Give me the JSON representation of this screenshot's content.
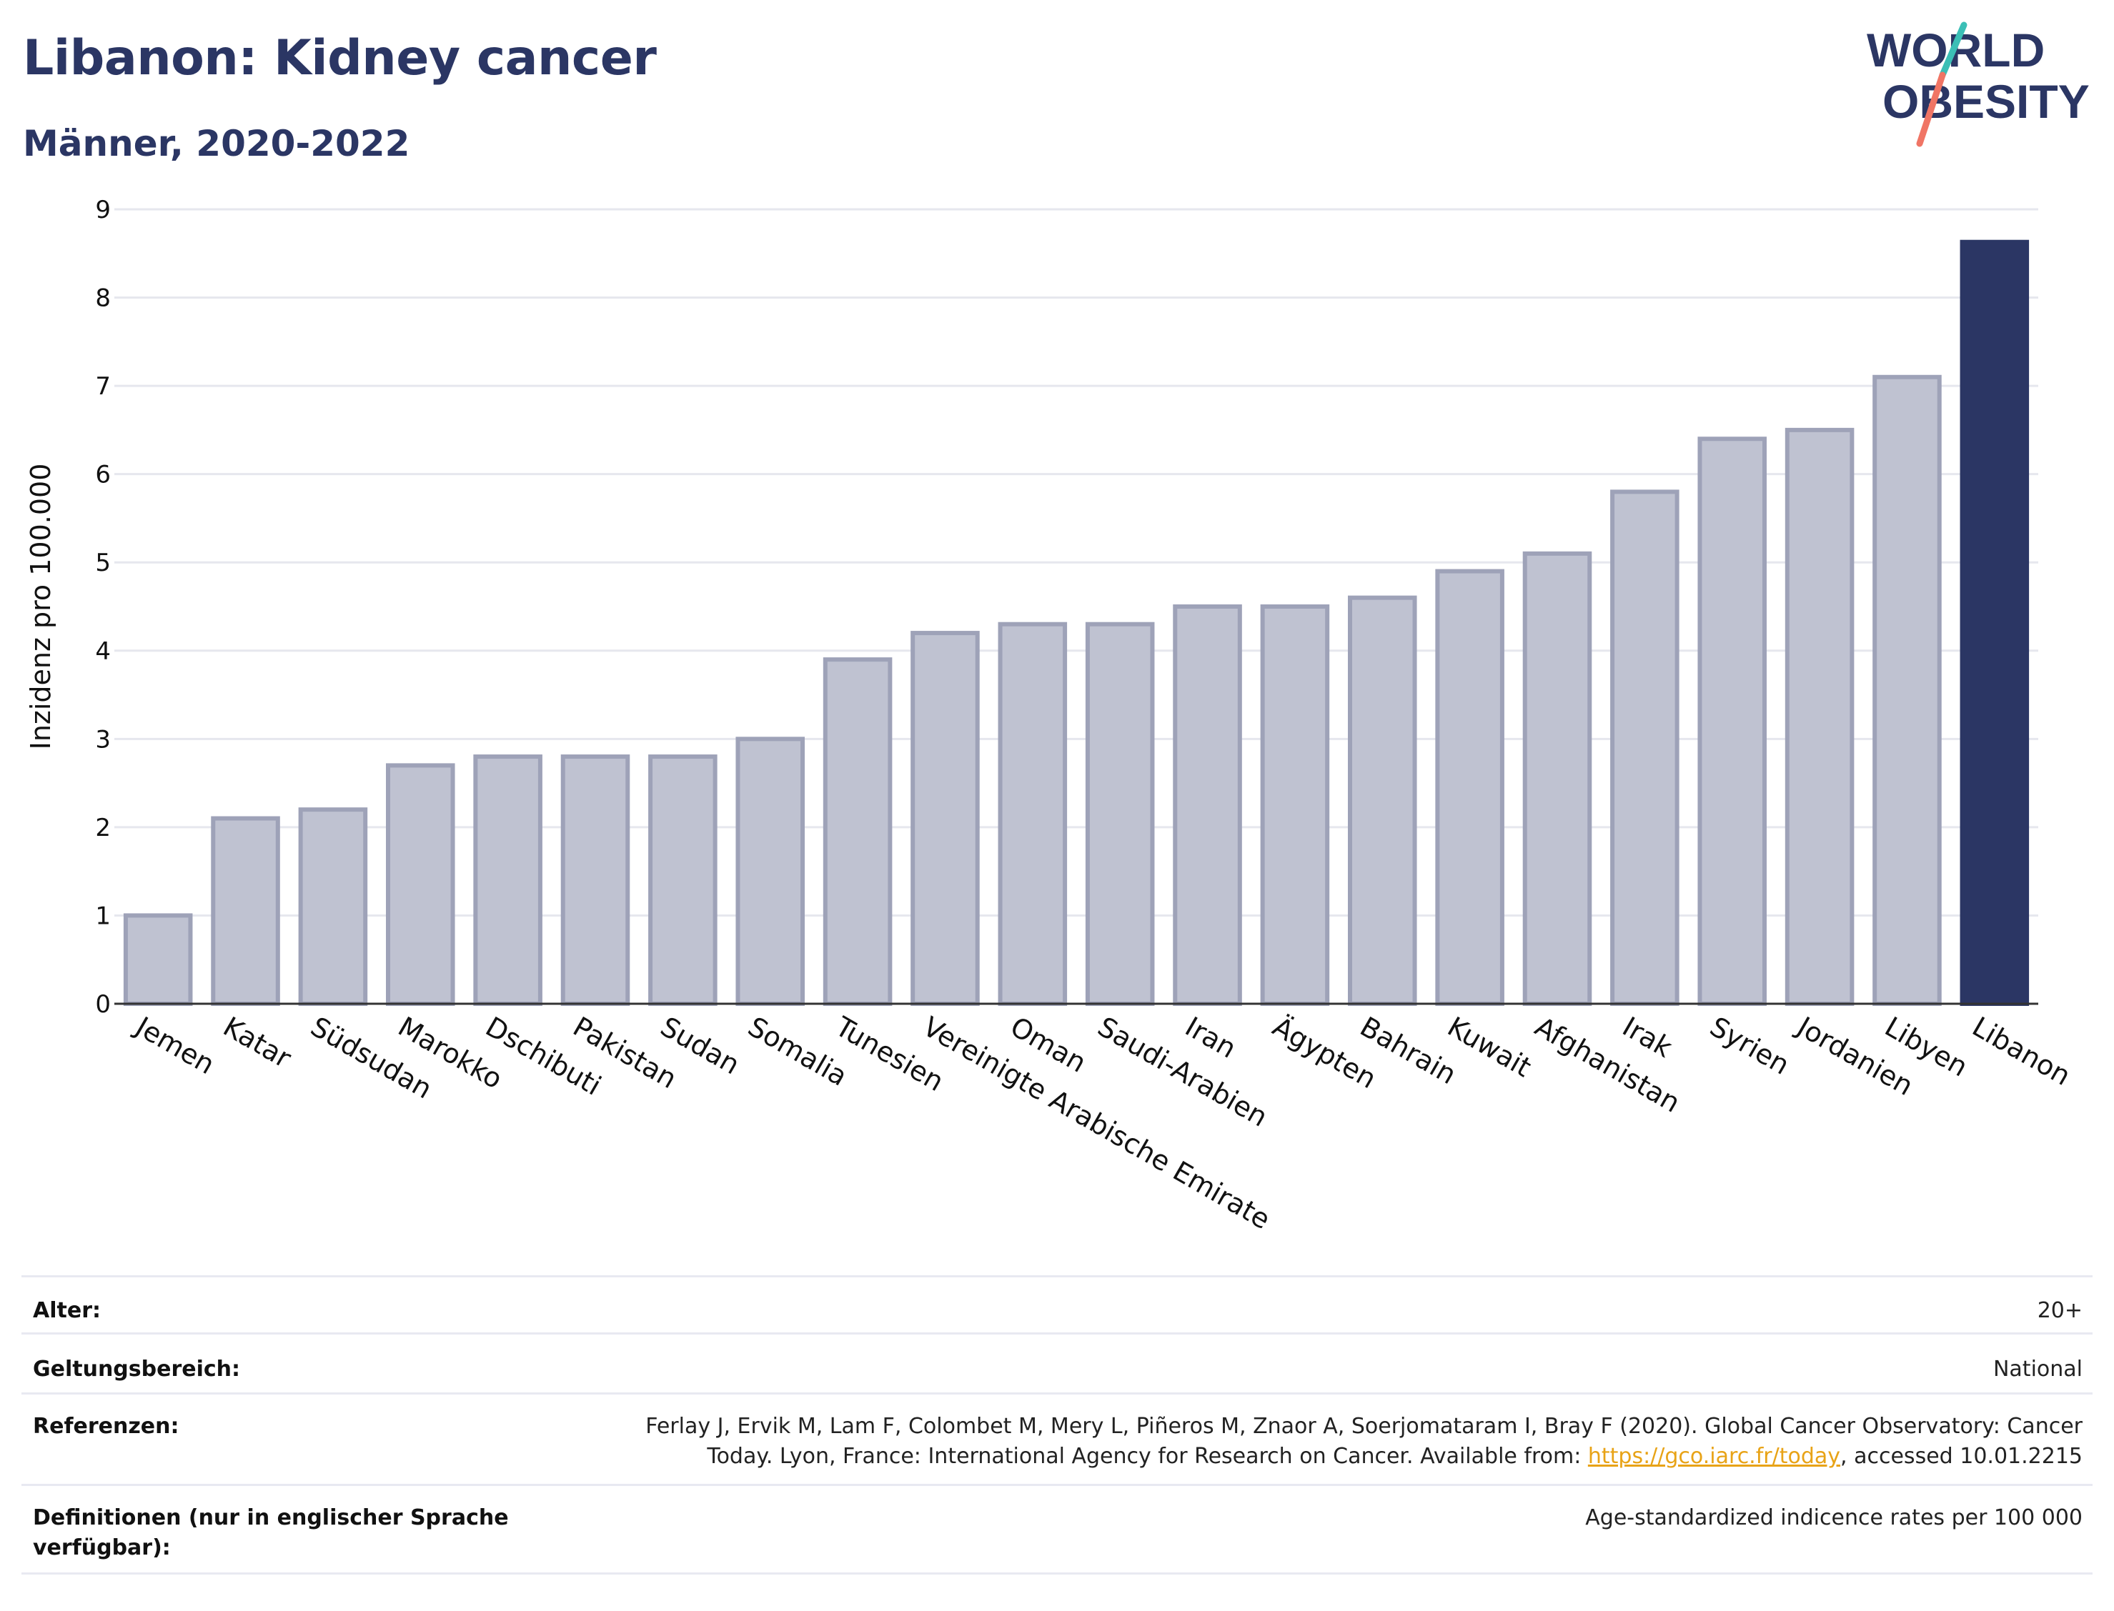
{
  "header": {
    "title": "Libanon: Kidney cancer",
    "subtitle": "Männer, 2020-2022",
    "logo": {
      "line1": "WORLD",
      "line2": "OBESITY"
    }
  },
  "colors": {
    "title": "#2b3664",
    "bar": "#bfc2d1",
    "bar_border": "#9ea2b8",
    "highlight": "#2b3664",
    "logo_teal": "#3bbfb6",
    "logo_coral": "#f07565",
    "link": "#e8a317"
  },
  "chart_data": {
    "type": "bar",
    "title": "Libanon: Kidney cancer",
    "subtitle": "Männer, 2020-2022",
    "xlabel": "",
    "ylabel": "Inzidenz pro 100.000",
    "ylim": [
      0,
      9
    ],
    "yticks": [
      0,
      1,
      2,
      3,
      4,
      5,
      6,
      7,
      8,
      9
    ],
    "grid": true,
    "categories": [
      "Jemen",
      "Katar",
      "Südsudan",
      "Marokko",
      "Dschibuti",
      "Pakistan",
      "Sudan",
      "Somalia",
      "Tunesien",
      "Vereinigte Arabische Emirate",
      "Oman",
      "Saudi-Arabien",
      "Iran",
      "Ägypten",
      "Bahrain",
      "Kuwait",
      "Afghanistan",
      "Irak",
      "Syrien",
      "Jordanien",
      "Libyen",
      "Libanon"
    ],
    "values": [
      1.0,
      2.1,
      2.2,
      2.7,
      2.8,
      2.8,
      2.8,
      3.0,
      3.9,
      4.2,
      4.3,
      4.3,
      4.5,
      4.5,
      4.6,
      4.9,
      5.1,
      5.8,
      6.4,
      6.5,
      7.1,
      8.63
    ],
    "highlight": "Libanon"
  },
  "meta": {
    "age_label": "Alter:",
    "age_value": "20+",
    "scope_label": "Geltungsbereich:",
    "scope_value": "National",
    "refs_label": "Referenzen:",
    "refs_line1": "Ferlay J, Ervik M, Lam F, Colombet M, Mery L, Piñeros M, Znaor A, Soerjomataram I, Bray F (2020). Global Cancer Observatory: Cancer",
    "refs_line2_pre": "Today. Lyon, France: International Agency for Research on Cancer. Available from: ",
    "refs_link": "https://gco.iarc.fr/today",
    "refs_line2_post": ", accessed 10.01.2215",
    "def_label_line1": "Definitionen (nur in englischer Sprache",
    "def_label_line2": "verfügbar):",
    "def_value": "Age-standardized indicence rates per 100 000"
  }
}
